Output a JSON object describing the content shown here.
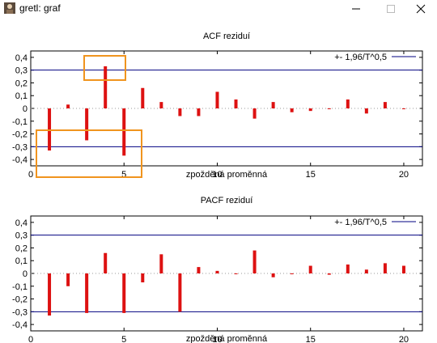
{
  "window": {
    "title": "gretl: graf"
  },
  "chart_data": [
    {
      "type": "bar",
      "title": "ACF reziduí",
      "xlabel": "zpožděná proměnná",
      "xlim": [
        0,
        21
      ],
      "ylim": [
        -0.45,
        0.45
      ],
      "x_ticks": [
        0,
        5,
        10,
        15,
        20
      ],
      "y_ticks": [
        -0.4,
        -0.3,
        -0.2,
        -0.1,
        0,
        0.1,
        0.2,
        0.3,
        0.4
      ],
      "y_tick_labels": [
        "-0,4",
        "-0,3",
        "-0,2",
        "-0,1",
        "0",
        "0,1",
        "0,2",
        "0,3",
        "0,4"
      ],
      "x": [
        1,
        2,
        3,
        4,
        5,
        6,
        7,
        8,
        9,
        10,
        11,
        12,
        13,
        14,
        15,
        16,
        17,
        18,
        19,
        20
      ],
      "values": [
        -0.33,
        0.03,
        -0.25,
        0.33,
        -0.37,
        0.16,
        0.05,
        -0.06,
        -0.06,
        0.13,
        0.07,
        -0.08,
        0.05,
        -0.03,
        -0.02,
        0.0,
        0.07,
        -0.04,
        0.05,
        0.0
      ],
      "bound": 0.3,
      "legend_label": "+- 1,96/T^0,5",
      "legend_position": "top-right",
      "bar_color": "#dd1111",
      "bound_color": "#000080"
    },
    {
      "type": "bar",
      "title": "PACF reziduí",
      "xlabel": "zpožděná proměnná",
      "xlim": [
        0,
        21
      ],
      "ylim": [
        -0.45,
        0.45
      ],
      "x_ticks": [
        0,
        5,
        10,
        15,
        20
      ],
      "y_ticks": [
        -0.4,
        -0.3,
        -0.2,
        -0.1,
        0,
        0.1,
        0.2,
        0.3,
        0.4
      ],
      "y_tick_labels": [
        "-0,4",
        "-0,3",
        "-0,2",
        "-0,1",
        "0",
        "0,1",
        "0,2",
        "0,3",
        "0,4"
      ],
      "x": [
        1,
        2,
        3,
        4,
        5,
        6,
        7,
        8,
        9,
        10,
        11,
        12,
        13,
        14,
        15,
        16,
        17,
        18,
        19,
        20
      ],
      "values": [
        -0.33,
        -0.1,
        -0.31,
        0.16,
        -0.31,
        -0.07,
        0.15,
        -0.3,
        0.05,
        0.02,
        0.0,
        0.18,
        -0.03,
        0.0,
        0.06,
        -0.01,
        0.07,
        0.03,
        0.08,
        0.06
      ],
      "bound": 0.3,
      "legend_label": "+- 1,96/T^0,5",
      "legend_position": "top-right",
      "bar_color": "#dd1111",
      "bound_color": "#000080"
    }
  ],
  "highlight_color": "#f0941e"
}
